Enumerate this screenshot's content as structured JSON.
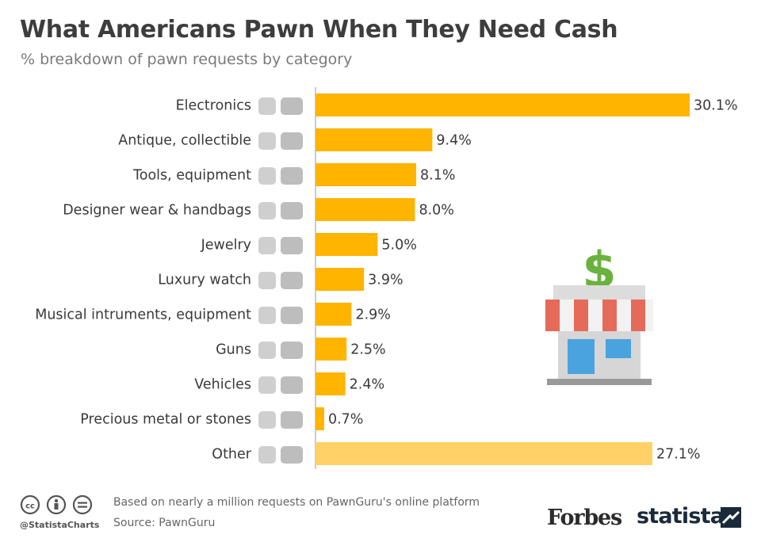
{
  "title": "What Americans Pawn When They Need Cash",
  "subtitle": "% breakdown of pawn requests by category",
  "chart_data": {
    "type": "bar",
    "orientation": "horizontal",
    "categories": [
      "Electronics",
      "Antique, collectible",
      "Tools, equipment",
      "Designer wear & handbags",
      "Jewelry",
      "Luxury watch",
      "Musical intruments, equipment",
      "Guns",
      "Vehicles",
      "Precious metal or stones",
      "Other"
    ],
    "values": [
      30.1,
      9.4,
      8.1,
      8.0,
      5.0,
      3.9,
      2.9,
      2.5,
      2.4,
      0.7,
      27.1
    ],
    "value_labels": [
      "30.1%",
      "9.4%",
      "8.1%",
      "8.0%",
      "5.0%",
      "3.9%",
      "2.9%",
      "2.5%",
      "2.4%",
      "0.7%",
      "27.1%"
    ],
    "xlim": [
      0,
      30.1
    ],
    "grid": false,
    "colors": {
      "bar": "#FFB400",
      "bar_other": "#FFD166",
      "axis": "#bbbbbb"
    },
    "category_icons": [
      "phone-laptop-icon",
      "vase-gramophone-icon",
      "chainsaw-pliers-icon",
      "jacket-handbag-icon",
      "earrings-ring-icon",
      "watches-icon",
      "guitars-sax-icon",
      "pistol-icon",
      "car-icon",
      "necklace-coins-icon",
      "spoons-basketball-icon"
    ]
  },
  "footer": {
    "note": "Based on nearly a million requests on PawnGuru's online platform",
    "source": "Source: PawnGuru",
    "handle": "@StatistaCharts",
    "forbes": "Forbes",
    "statista": "statista"
  }
}
